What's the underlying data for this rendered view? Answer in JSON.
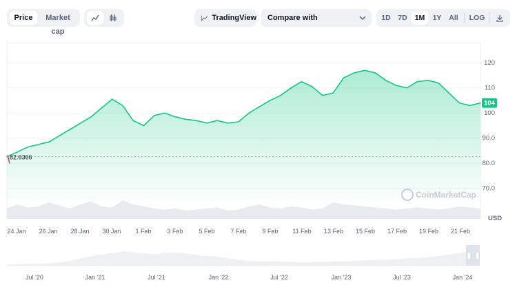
{
  "toolbar": {
    "view_tabs": [
      "Price",
      "Market cap"
    ],
    "active_view": "Price",
    "line_icon": "line-chart-icon",
    "candle_icon": "candlestick-icon",
    "tradingview_label": "TradingView",
    "tradingview_icon": "tradingview-line-icon",
    "compare_label": "Compare with",
    "compare_icon": "chevron-down-icon",
    "ranges": [
      "1D",
      "7D",
      "1M",
      "1Y",
      "All"
    ],
    "active_range": "1M",
    "log_label": "LOG",
    "download_icon": "download-icon"
  },
  "colors": {
    "line": "#16c784",
    "fill_top": "#16c784",
    "baseline_marker": "#ea3943",
    "price_badge_bg": "#16c784",
    "grid": "#eff2f5",
    "volume": "#e7eaee"
  },
  "watermark": "CoinMarketCap",
  "currency_label": "USD",
  "chart_data": {
    "type": "area",
    "x": [
      "24 Jan",
      "24 Jan",
      "25 Jan",
      "26 Jan",
      "26 Jan",
      "27 Jan",
      "28 Jan",
      "28 Jan",
      "29 Jan",
      "30 Jan",
      "30 Jan",
      "31 Jan",
      "1 Feb",
      "1 Feb",
      "2 Feb",
      "3 Feb",
      "3 Feb",
      "4 Feb",
      "5 Feb",
      "5 Feb",
      "6 Feb",
      "7 Feb",
      "7 Feb",
      "8 Feb",
      "9 Feb",
      "9 Feb",
      "10 Feb",
      "11 Feb",
      "11 Feb",
      "12 Feb",
      "13 Feb",
      "13 Feb",
      "14 Feb",
      "15 Feb",
      "15 Feb",
      "16 Feb",
      "17 Feb",
      "17 Feb",
      "18 Feb",
      "19 Feb",
      "19 Feb",
      "20 Feb",
      "21 Feb",
      "21 Feb",
      "22 Feb",
      "22 Feb"
    ],
    "series": [
      {
        "values": [
          82.6,
          84.5,
          86.5,
          87.5,
          88.5,
          91,
          93.5,
          96,
          98.5,
          102,
          105.5,
          103,
          97,
          95,
          99,
          100,
          98.5,
          97.5,
          97,
          96,
          97,
          96,
          96.5,
          100,
          102.5,
          105,
          107,
          110,
          112.5,
          110.5,
          107,
          108,
          114,
          116,
          117,
          116,
          113,
          111,
          110,
          112.5,
          113,
          112,
          108,
          104,
          103,
          104
        ]
      }
    ],
    "x_ticks": [
      "24 Jan",
      "26 Jan",
      "28 Jan",
      "30 Jan",
      "1 Feb",
      "3 Feb",
      "5 Feb",
      "7 Feb",
      "9 Feb",
      "11 Feb",
      "13 Feb",
      "15 Feb",
      "17 Feb",
      "19 Feb",
      "21 Feb"
    ],
    "y_ticks": [
      "70.0",
      "80.0",
      "90.0",
      "100",
      "110",
      "120"
    ],
    "ylim": [
      65,
      128
    ],
    "baseline_value": "82.6366",
    "current_price_label": "104",
    "navigator_ticks": [
      "Jul '20",
      "Jan '21",
      "Jul '21",
      "Jan '22",
      "Jul '22",
      "Jan '23",
      "Jul '23",
      "Jan '24"
    ],
    "grid": true,
    "legend": "none"
  }
}
